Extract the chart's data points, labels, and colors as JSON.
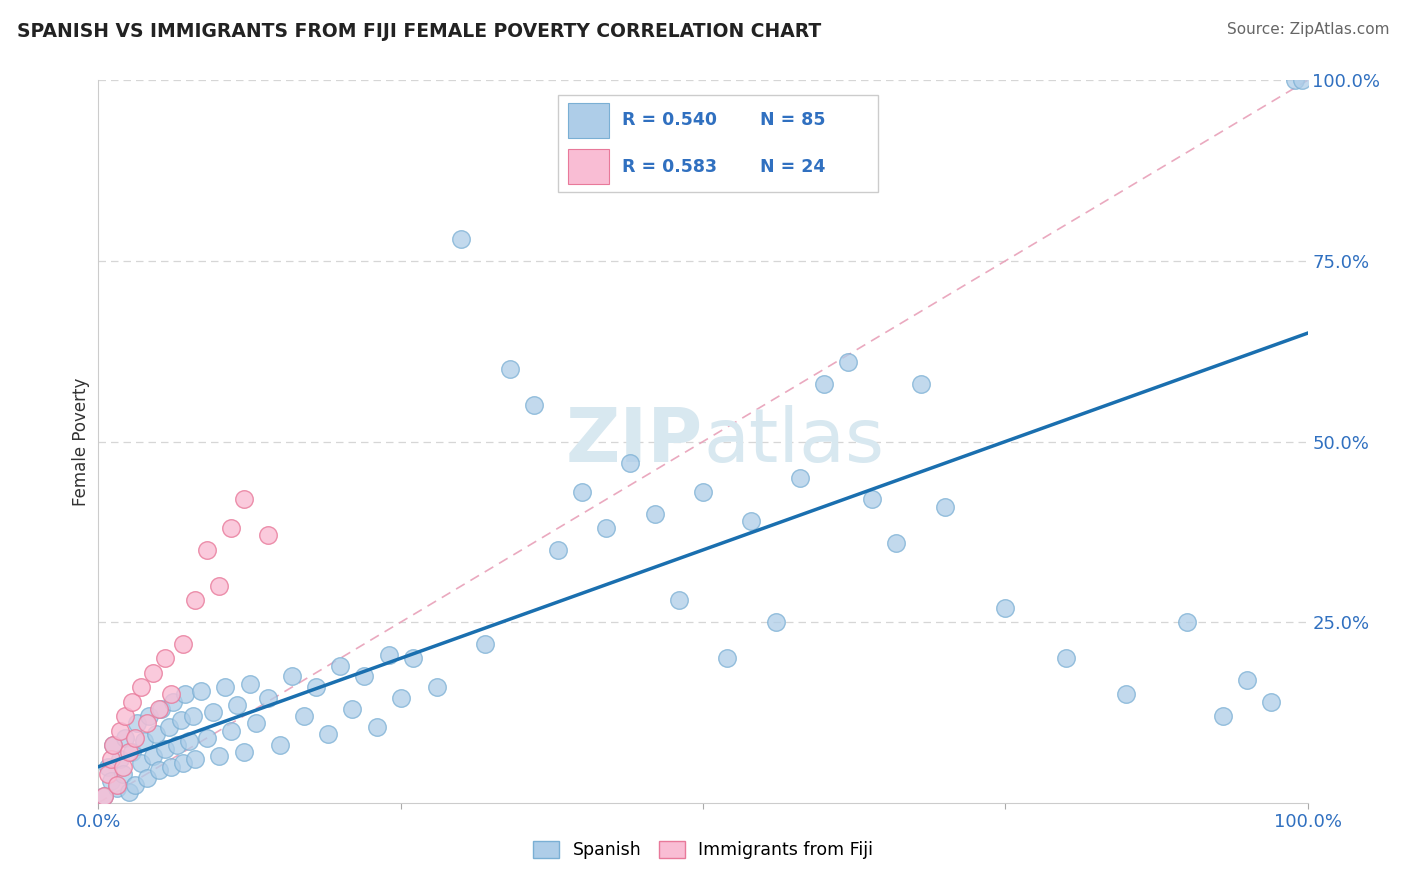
{
  "title": "SPANISH VS IMMIGRANTS FROM FIJI FEMALE POVERTY CORRELATION CHART",
  "source": "Source: ZipAtlas.com",
  "ylabel_label": "Female Poverty",
  "xlim": [
    0.0,
    1.0
  ],
  "ylim": [
    0.0,
    1.0
  ],
  "scatter_blue_face": "#aecde8",
  "scatter_blue_edge": "#7aafd4",
  "scatter_pink_face": "#f9bdd4",
  "scatter_pink_edge": "#e8799a",
  "regression_blue": "#1a6faf",
  "regression_pink": "#e0507a",
  "diagonal_color": "#e8a0b8",
  "grid_color": "#cccccc",
  "tick_label_color": "#3070c0",
  "legend_text_color": "#3070c0",
  "watermark_color": "#d8e8f0",
  "watermark_text": "ZIPatlas",
  "legend_r1": "R = 0.540",
  "legend_n1": "N = 85",
  "legend_r2": "R = 0.583",
  "legend_n2": "N = 24",
  "spanish_x": [
    0.005,
    0.008,
    0.01,
    0.012,
    0.015,
    0.018,
    0.02,
    0.022,
    0.025,
    0.028,
    0.03,
    0.032,
    0.035,
    0.038,
    0.04,
    0.042,
    0.045,
    0.048,
    0.05,
    0.052,
    0.055,
    0.058,
    0.06,
    0.062,
    0.065,
    0.068,
    0.07,
    0.072,
    0.075,
    0.078,
    0.08,
    0.085,
    0.09,
    0.095,
    0.1,
    0.105,
    0.11,
    0.115,
    0.12,
    0.125,
    0.13,
    0.14,
    0.15,
    0.16,
    0.17,
    0.18,
    0.19,
    0.2,
    0.21,
    0.22,
    0.23,
    0.24,
    0.25,
    0.26,
    0.28,
    0.3,
    0.32,
    0.34,
    0.36,
    0.38,
    0.4,
    0.42,
    0.44,
    0.46,
    0.48,
    0.5,
    0.52,
    0.54,
    0.56,
    0.58,
    0.6,
    0.62,
    0.64,
    0.66,
    0.68,
    0.7,
    0.75,
    0.8,
    0.85,
    0.9,
    0.93,
    0.95,
    0.97,
    0.99,
    0.995
  ],
  "spanish_y": [
    0.01,
    0.05,
    0.03,
    0.08,
    0.02,
    0.06,
    0.04,
    0.09,
    0.015,
    0.07,
    0.025,
    0.11,
    0.055,
    0.085,
    0.035,
    0.12,
    0.065,
    0.095,
    0.045,
    0.13,
    0.075,
    0.105,
    0.05,
    0.14,
    0.08,
    0.115,
    0.055,
    0.15,
    0.085,
    0.12,
    0.06,
    0.155,
    0.09,
    0.125,
    0.065,
    0.16,
    0.1,
    0.135,
    0.07,
    0.165,
    0.11,
    0.145,
    0.08,
    0.175,
    0.12,
    0.16,
    0.095,
    0.19,
    0.13,
    0.175,
    0.105,
    0.205,
    0.145,
    0.2,
    0.16,
    0.78,
    0.22,
    0.6,
    0.55,
    0.35,
    0.43,
    0.38,
    0.47,
    0.4,
    0.28,
    0.43,
    0.2,
    0.39,
    0.25,
    0.45,
    0.58,
    0.61,
    0.42,
    0.36,
    0.58,
    0.41,
    0.27,
    0.2,
    0.15,
    0.25,
    0.12,
    0.17,
    0.14,
    1.0,
    1.0
  ],
  "fiji_x": [
    0.005,
    0.008,
    0.01,
    0.012,
    0.015,
    0.018,
    0.02,
    0.022,
    0.025,
    0.028,
    0.03,
    0.035,
    0.04,
    0.045,
    0.05,
    0.055,
    0.06,
    0.07,
    0.08,
    0.09,
    0.1,
    0.11,
    0.12,
    0.14
  ],
  "fiji_y": [
    0.01,
    0.04,
    0.06,
    0.08,
    0.025,
    0.1,
    0.05,
    0.12,
    0.07,
    0.14,
    0.09,
    0.16,
    0.11,
    0.18,
    0.13,
    0.2,
    0.15,
    0.22,
    0.28,
    0.35,
    0.3,
    0.38,
    0.42,
    0.37
  ]
}
